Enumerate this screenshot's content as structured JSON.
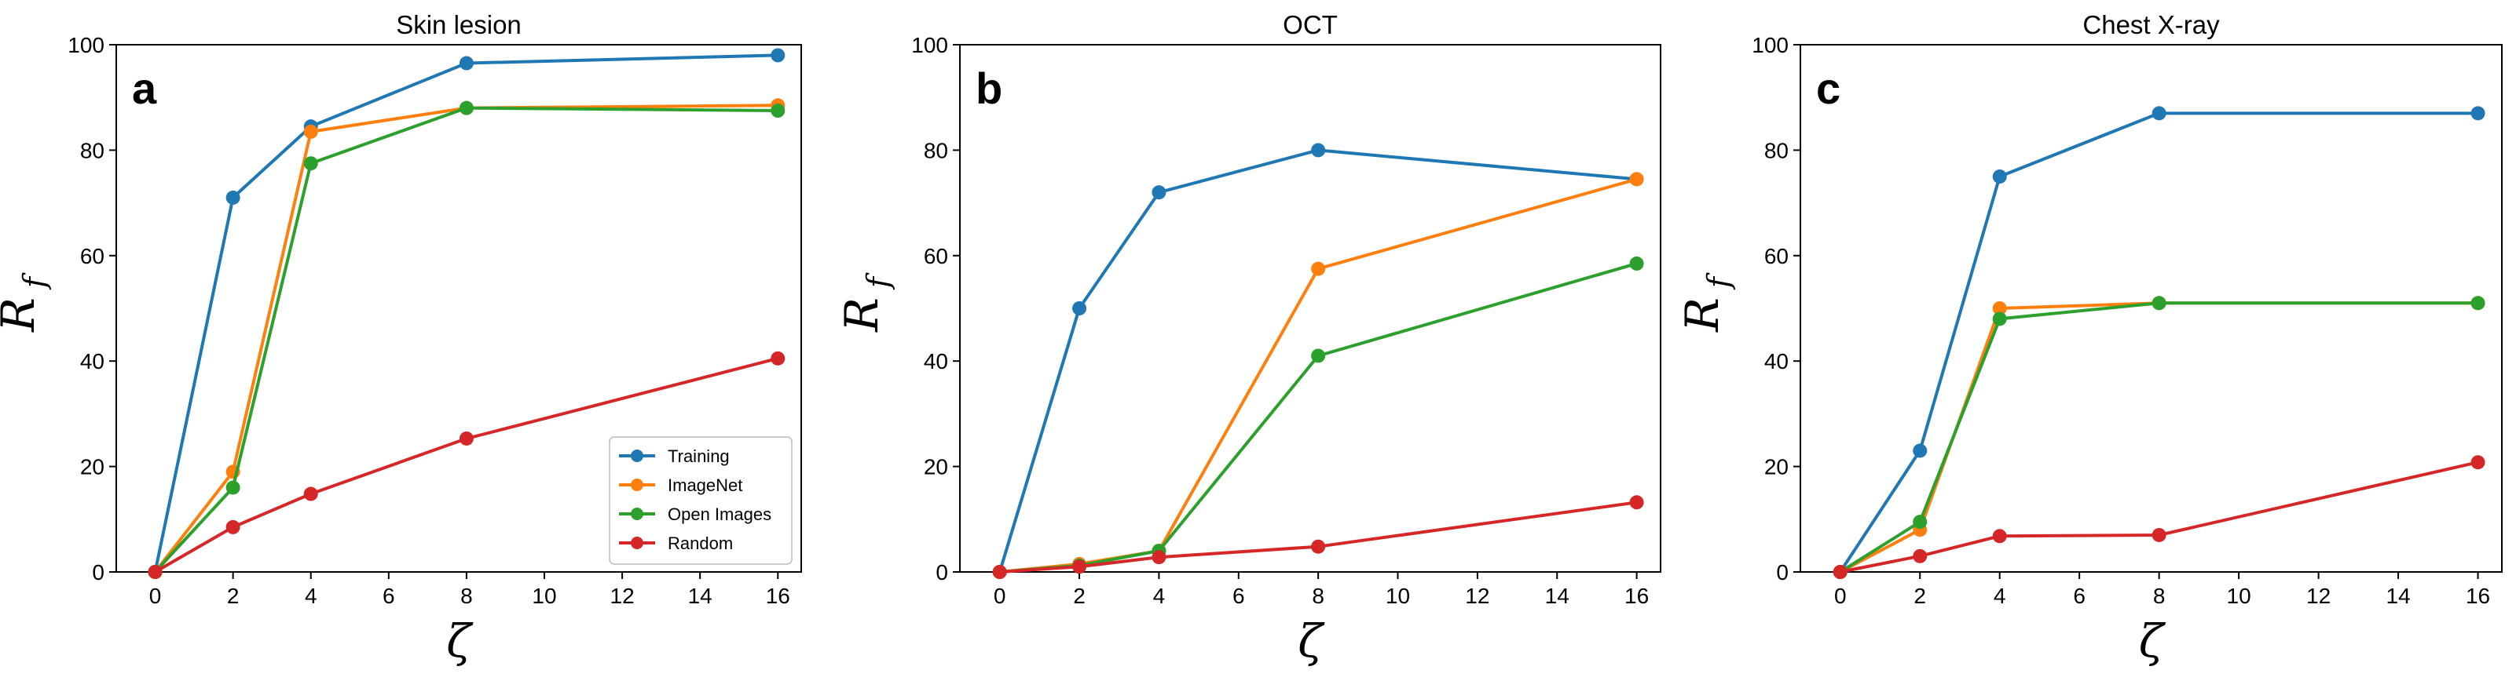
{
  "series_colors": {
    "Training": "#1f77b4",
    "ImageNet": "#ff7f0e",
    "Open Images": "#2ca02c",
    "Random": "#d62728"
  },
  "chart_data": [
    {
      "type": "line",
      "panel": "a",
      "title": "Skin lesion",
      "xlabel": "ζ",
      "ylabel": "R",
      "ylabel_sub": "f",
      "xlim": [
        -1,
        16.6
      ],
      "ylim": [
        0,
        100
      ],
      "xticks": [
        0,
        2,
        4,
        6,
        8,
        10,
        12,
        14,
        16
      ],
      "yticks": [
        0,
        20,
        40,
        60,
        80,
        100
      ],
      "x": [
        0,
        2,
        4,
        8,
        16
      ],
      "legend": {
        "position": "lower-right",
        "entries": [
          "Training",
          "ImageNet",
          "Open Images",
          "Random"
        ]
      },
      "series": [
        {
          "name": "Training",
          "values": [
            0,
            71,
            84.5,
            96.5,
            98
          ]
        },
        {
          "name": "ImageNet",
          "values": [
            0,
            19,
            83.5,
            88,
            88.5
          ]
        },
        {
          "name": "Open Images",
          "values": [
            0,
            16,
            77.5,
            88,
            87.5
          ]
        },
        {
          "name": "Random",
          "values": [
            0,
            8.5,
            14.8,
            25.3,
            40.5
          ]
        }
      ]
    },
    {
      "type": "line",
      "panel": "b",
      "title": "OCT",
      "xlabel": "ζ",
      "ylabel": "R",
      "ylabel_sub": "f",
      "xlim": [
        -1,
        16.6
      ],
      "ylim": [
        0,
        100
      ],
      "xticks": [
        0,
        2,
        4,
        6,
        8,
        10,
        12,
        14,
        16
      ],
      "yticks": [
        0,
        20,
        40,
        60,
        80,
        100
      ],
      "x": [
        0,
        2,
        4,
        8,
        16
      ],
      "series": [
        {
          "name": "Training",
          "values": [
            0,
            50,
            72,
            80,
            74.5
          ]
        },
        {
          "name": "ImageNet",
          "values": [
            0,
            1.5,
            4,
            57.5,
            74.5
          ]
        },
        {
          "name": "Open Images",
          "values": [
            0,
            1.2,
            4,
            41,
            58.5
          ]
        },
        {
          "name": "Random",
          "values": [
            0,
            1,
            2.8,
            4.8,
            13.2
          ]
        }
      ]
    },
    {
      "type": "line",
      "panel": "c",
      "title": "Chest X-ray",
      "xlabel": "ζ",
      "ylabel": "R",
      "ylabel_sub": "f",
      "xlim": [
        -1,
        16.6
      ],
      "ylim": [
        0,
        100
      ],
      "xticks": [
        0,
        2,
        4,
        6,
        8,
        10,
        12,
        14,
        16
      ],
      "yticks": [
        0,
        20,
        40,
        60,
        80,
        100
      ],
      "x": [
        0,
        2,
        4,
        8,
        16
      ],
      "series": [
        {
          "name": "Training",
          "values": [
            0,
            23,
            75,
            87,
            87
          ]
        },
        {
          "name": "ImageNet",
          "values": [
            0,
            8,
            50,
            51,
            51
          ]
        },
        {
          "name": "Open Images",
          "values": [
            0,
            9.5,
            48,
            51,
            51
          ]
        },
        {
          "name": "Random",
          "values": [
            0,
            3,
            6.8,
            7,
            20.8
          ]
        }
      ]
    }
  ]
}
